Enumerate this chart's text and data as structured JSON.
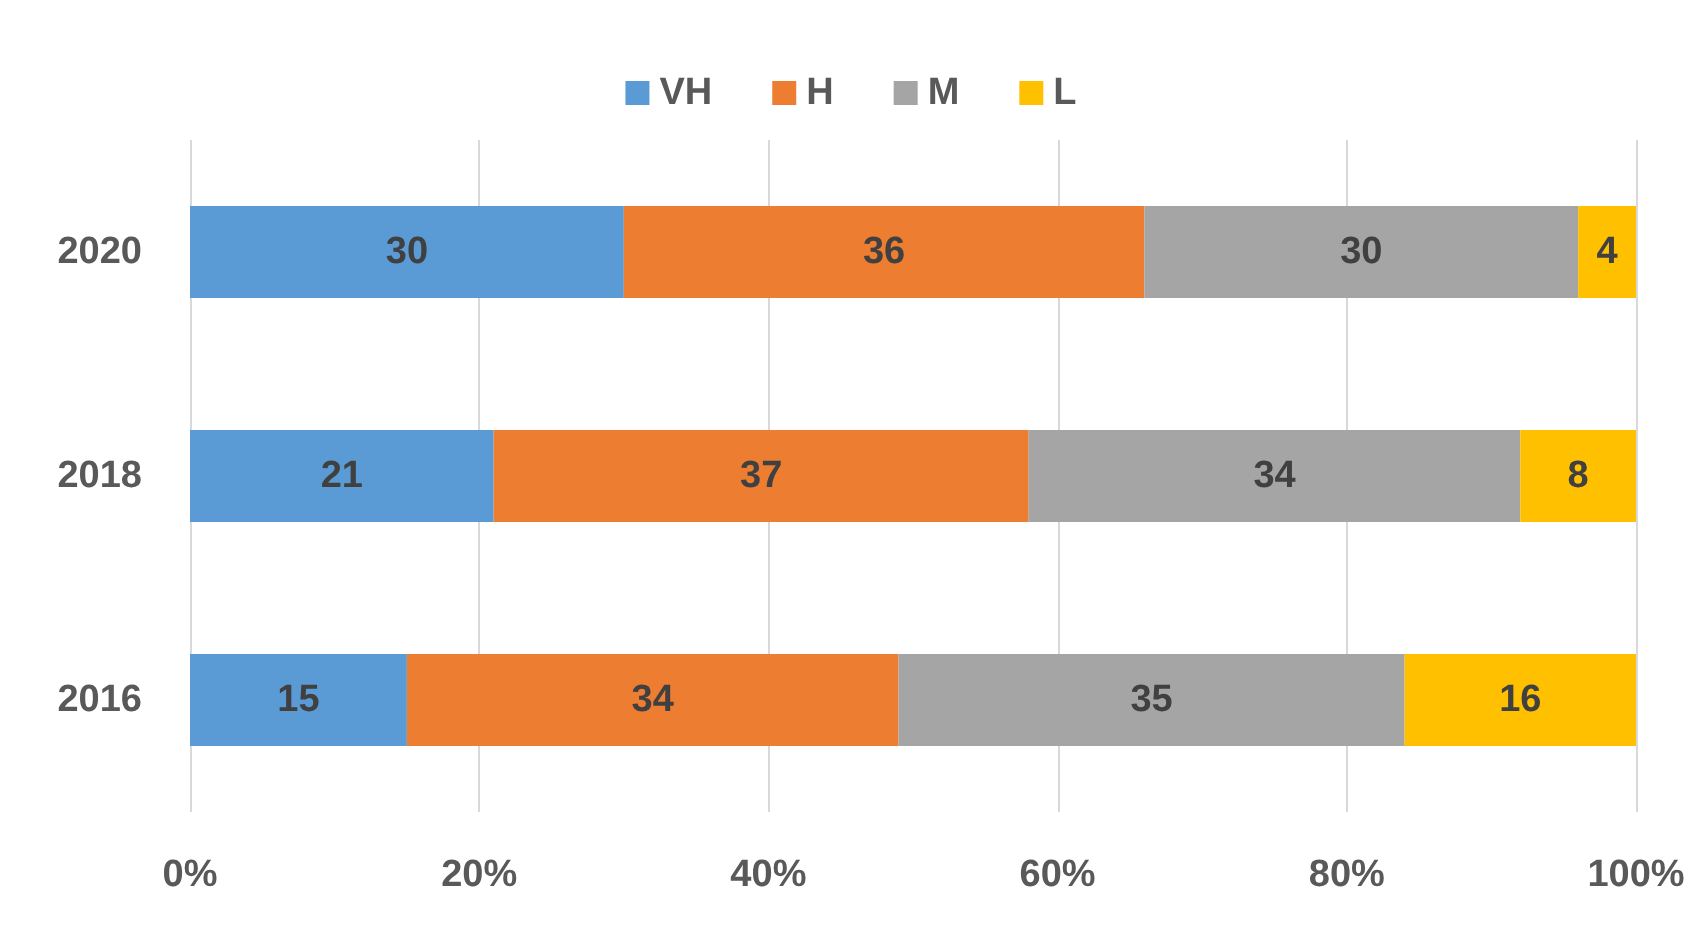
{
  "chart_data": {
    "type": "bar",
    "orientation": "horizontal",
    "stacked": true,
    "categories": [
      "2020",
      "2018",
      "2016"
    ],
    "series": [
      {
        "name": "VH",
        "color": "#5b9bd5",
        "values": [
          30,
          21,
          15
        ]
      },
      {
        "name": "H",
        "color": "#ed7d31",
        "values": [
          36,
          37,
          34
        ]
      },
      {
        "name": "M",
        "color": "#a5a5a5",
        "values": [
          30,
          34,
          35
        ]
      },
      {
        "name": "L",
        "color": "#ffc000",
        "values": [
          4,
          8,
          16
        ]
      }
    ],
    "xlim": [
      0,
      100
    ],
    "xticks": [
      {
        "value": 0,
        "label": "0%"
      },
      {
        "value": 20,
        "label": "20%"
      },
      {
        "value": 40,
        "label": "40%"
      },
      {
        "value": 60,
        "label": "60%"
      },
      {
        "value": 80,
        "label": "80%"
      },
      {
        "value": 100,
        "label": "100%"
      }
    ],
    "grid": "x",
    "legend": "top",
    "data_labels": true
  }
}
